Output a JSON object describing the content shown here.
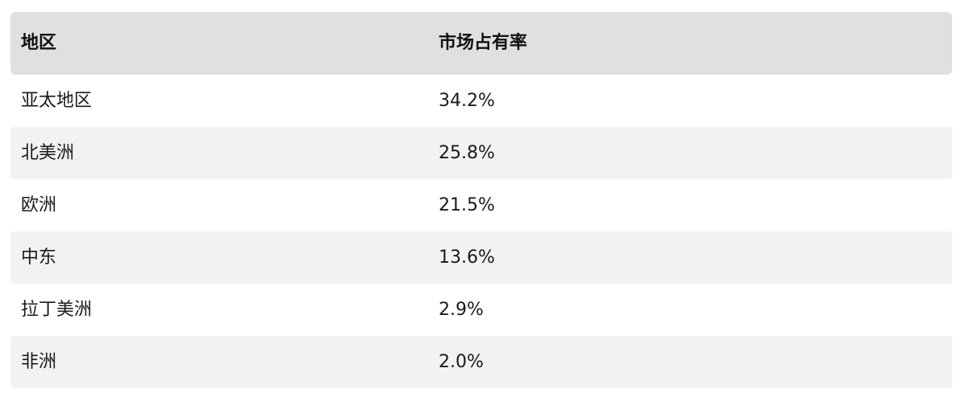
{
  "table": {
    "headers": {
      "region": "地区",
      "share": "市场占有率"
    },
    "rows": [
      {
        "region": "亚太地区",
        "share": "34.2%"
      },
      {
        "region": "北美洲",
        "share": "25.8%"
      },
      {
        "region": "欧洲",
        "share": "21.5%"
      },
      {
        "region": "中东",
        "share": "13.6%"
      },
      {
        "region": "拉丁美洲",
        "share": "2.9%"
      },
      {
        "region": "非洲",
        "share": "2.0%"
      }
    ]
  },
  "chart_data": {
    "type": "table",
    "columns": [
      "地区",
      "市场占有率"
    ],
    "rows": [
      [
        "亚太地区",
        "34.2%"
      ],
      [
        "北美洲",
        "25.8%"
      ],
      [
        "欧洲",
        "21.5%"
      ],
      [
        "中东",
        "13.6%"
      ],
      [
        "拉丁美洲",
        "2.9%"
      ],
      [
        "非洲",
        "2.0%"
      ]
    ]
  }
}
